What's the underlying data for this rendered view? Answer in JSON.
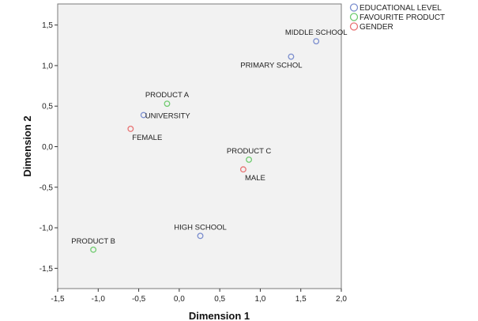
{
  "chart_data": {
    "type": "scatter",
    "title": "",
    "xlabel": "Dimension 1",
    "ylabel": "Dimension 2",
    "xlim": [
      -1.5,
      2.0
    ],
    "ylim": [
      -1.75,
      1.76
    ],
    "xticks": [
      "-1,5",
      "-1,0",
      "-0,5",
      "0,0",
      "0,5",
      "1,0",
      "1,5",
      "2,0"
    ],
    "xtick_values": [
      -1.5,
      -1.0,
      -0.5,
      0.0,
      0.5,
      1.0,
      1.5,
      2.0
    ],
    "yticks": [
      "1,5",
      "1,0",
      "0,5",
      "0,0",
      "-0,5",
      "-1,0",
      "-1,5"
    ],
    "ytick_values": [
      1.5,
      1.0,
      0.5,
      0.0,
      -0.5,
      -1.0,
      -1.5
    ],
    "grid": false,
    "legend_position": "top-right",
    "series": [
      {
        "name": "EDUCATIONAL LEVEL",
        "color": "#7b8ece",
        "points": [
          {
            "label": "MIDDLE SCHOOL",
            "x": 1.69,
            "y": 1.3,
            "label_pos": "above"
          },
          {
            "label": "PRIMARY SCHOL",
            "x": 1.38,
            "y": 1.11,
            "label_pos": "below"
          },
          {
            "label": "UNIVERSITY",
            "x": -0.44,
            "y": 0.39,
            "label_pos": "right"
          },
          {
            "label": "HIGH SCHOOL",
            "x": 0.26,
            "y": -1.1,
            "label_pos": "above"
          }
        ]
      },
      {
        "name": "FAVOURITE PRODUCT",
        "color": "#6fcb6f",
        "points": [
          {
            "label": "PRODUCT A",
            "x": -0.15,
            "y": 0.53,
            "label_pos": "above"
          },
          {
            "label": "PRODUCT C",
            "x": 0.86,
            "y": -0.16,
            "label_pos": "above"
          },
          {
            "label": "PRODUCT B",
            "x": -1.06,
            "y": -1.27,
            "label_pos": "above"
          }
        ]
      },
      {
        "name": "GENDER",
        "color": "#e87474",
        "points": [
          {
            "label": "FEMALE",
            "x": -0.6,
            "y": 0.22,
            "label_pos": "below"
          },
          {
            "label": "MALE",
            "x": 0.79,
            "y": -0.28,
            "label_pos": "below"
          }
        ]
      }
    ]
  }
}
